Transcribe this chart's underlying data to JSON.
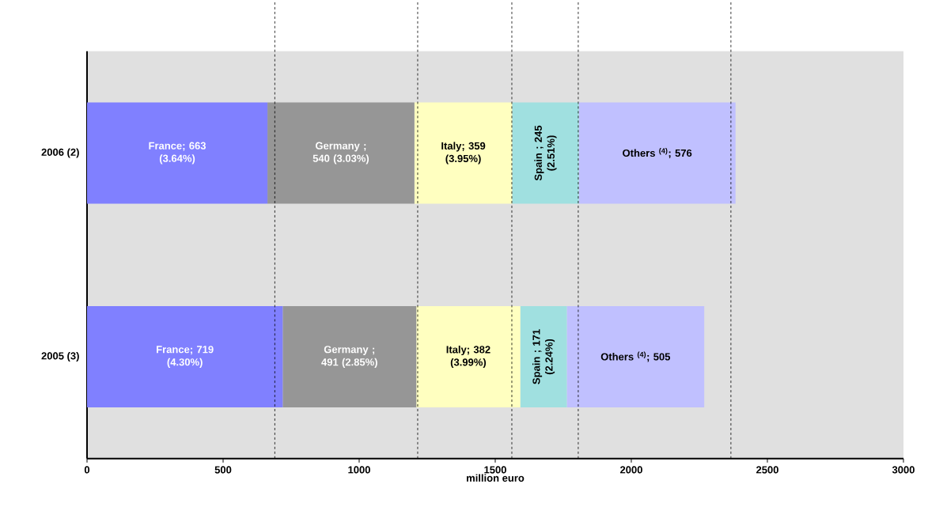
{
  "chart_data": {
    "type": "bar",
    "orientation": "horizontal",
    "stacked": true,
    "categories": [
      "2006 (2)",
      "2005 (3)"
    ],
    "series": [
      {
        "color": "#8080ff",
        "values": [
          663,
          719
        ],
        "value_labels": [
          "France; 663 (3.64%)",
          "France; 719 (4.30%)"
        ]
      },
      {
        "color": "#969696",
        "values": [
          540,
          491
        ],
        "value_labels": [
          "Germany ; 540 (3.03%)",
          "Germany ; 491 (2.85%)"
        ]
      },
      {
        "color": "#ffffc0",
        "values": [
          359,
          382
        ],
        "value_labels": [
          "Italy; 359 (3.95%)",
          "Italy; 382 (3.99%)"
        ]
      },
      {
        "color": "#a0e0e0",
        "values": [
          245,
          171
        ],
        "value_labels": [
          "Spain ; 245 (2.51%)",
          "Spain ; 171 (2.24%)"
        ]
      },
      {
        "color": "#c0c0ff",
        "values": [
          576,
          505
        ],
        "value_labels": [
          "Others $^{(4)}$; 576",
          "Others $^{(4)}$; 505"
        ]
      }
    ],
    "xlim": [
      0,
      3000
    ],
    "xticks": [
      0,
      500,
      1000,
      1500,
      2000,
      2500,
      3000
    ],
    "xlabel": "million euro",
    "bands": [
      {
        "axis": "x",
        "from": 0,
        "to": 3000,
        "color": "#e0e0e0"
      }
    ],
    "ref_lines": [
      {
        "axis": "x",
        "value": 690,
        "line_style": "dashed"
      },
      {
        "axis": "x",
        "value": 1215,
        "line_style": "dashed"
      },
      {
        "axis": "x",
        "value": 1561,
        "line_style": "dashed"
      },
      {
        "axis": "x",
        "value": 1805,
        "line_style": "dashed"
      },
      {
        "axis": "x",
        "value": 2366,
        "line_style": "dashed"
      }
    ]
  }
}
